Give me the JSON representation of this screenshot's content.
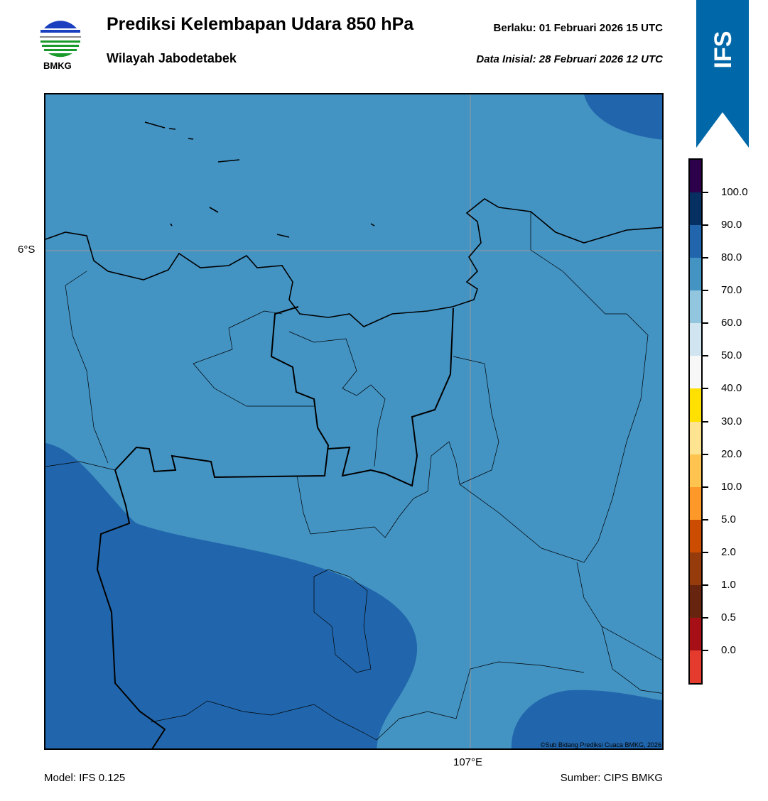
{
  "header": {
    "title": "Prediksi Kelembapan Udara 850 hPa",
    "subtitle": "Wilayah Jabodetabek",
    "valid_label": "Berlaku:  01 Februari 2026 15 UTC",
    "init_label": "Data Inisial:  28 Februari 2026 12 UTC",
    "logo_text": "BMKG",
    "badge_text": "IFS"
  },
  "map": {
    "lat_label": "6°S",
    "lon_label": "107°E",
    "credit": "©Sub Bidang Prediksi Cuaca BMKG, 2026",
    "fill_colors": {
      "main": "#4393c3",
      "dark": "#2166ac"
    }
  },
  "colorbar": {
    "labels": [
      "0.0",
      "0.5",
      "1.0",
      "2.0",
      "5.0",
      "10.0",
      "20.0",
      "30.0",
      "40.0",
      "50.0",
      "60.0",
      "70.0",
      "80.0",
      "90.0",
      "100.0"
    ],
    "colors": [
      "#e53b2f",
      "#a50f15",
      "#67250f",
      "#963b0c",
      "#cc4c02",
      "#fe9929",
      "#fec44f",
      "#fee391",
      "#ffe000",
      "#f7f7f7",
      "#d1e5f0",
      "#92c5de",
      "#4393c3",
      "#2166ac",
      "#053061",
      "#2d004b"
    ]
  },
  "footer": {
    "model": "Model: IFS 0.125",
    "source": "Sumber: CIPS BMKG"
  }
}
